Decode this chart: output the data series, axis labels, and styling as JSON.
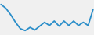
{
  "x": [
    0,
    1,
    2,
    3,
    4,
    5,
    6,
    7,
    8,
    9,
    10,
    11,
    12,
    13,
    14,
    15,
    16,
    17,
    18,
    19
  ],
  "y": [
    88,
    82,
    72,
    60,
    50,
    47,
    52,
    48,
    54,
    60,
    55,
    62,
    54,
    62,
    55,
    62,
    55,
    60,
    55,
    80
  ],
  "line_color": "#2b8ec9",
  "linewidth": 1.3,
  "background_color": "#f0f0f0",
  "ylim_min": 40,
  "ylim_max": 95
}
